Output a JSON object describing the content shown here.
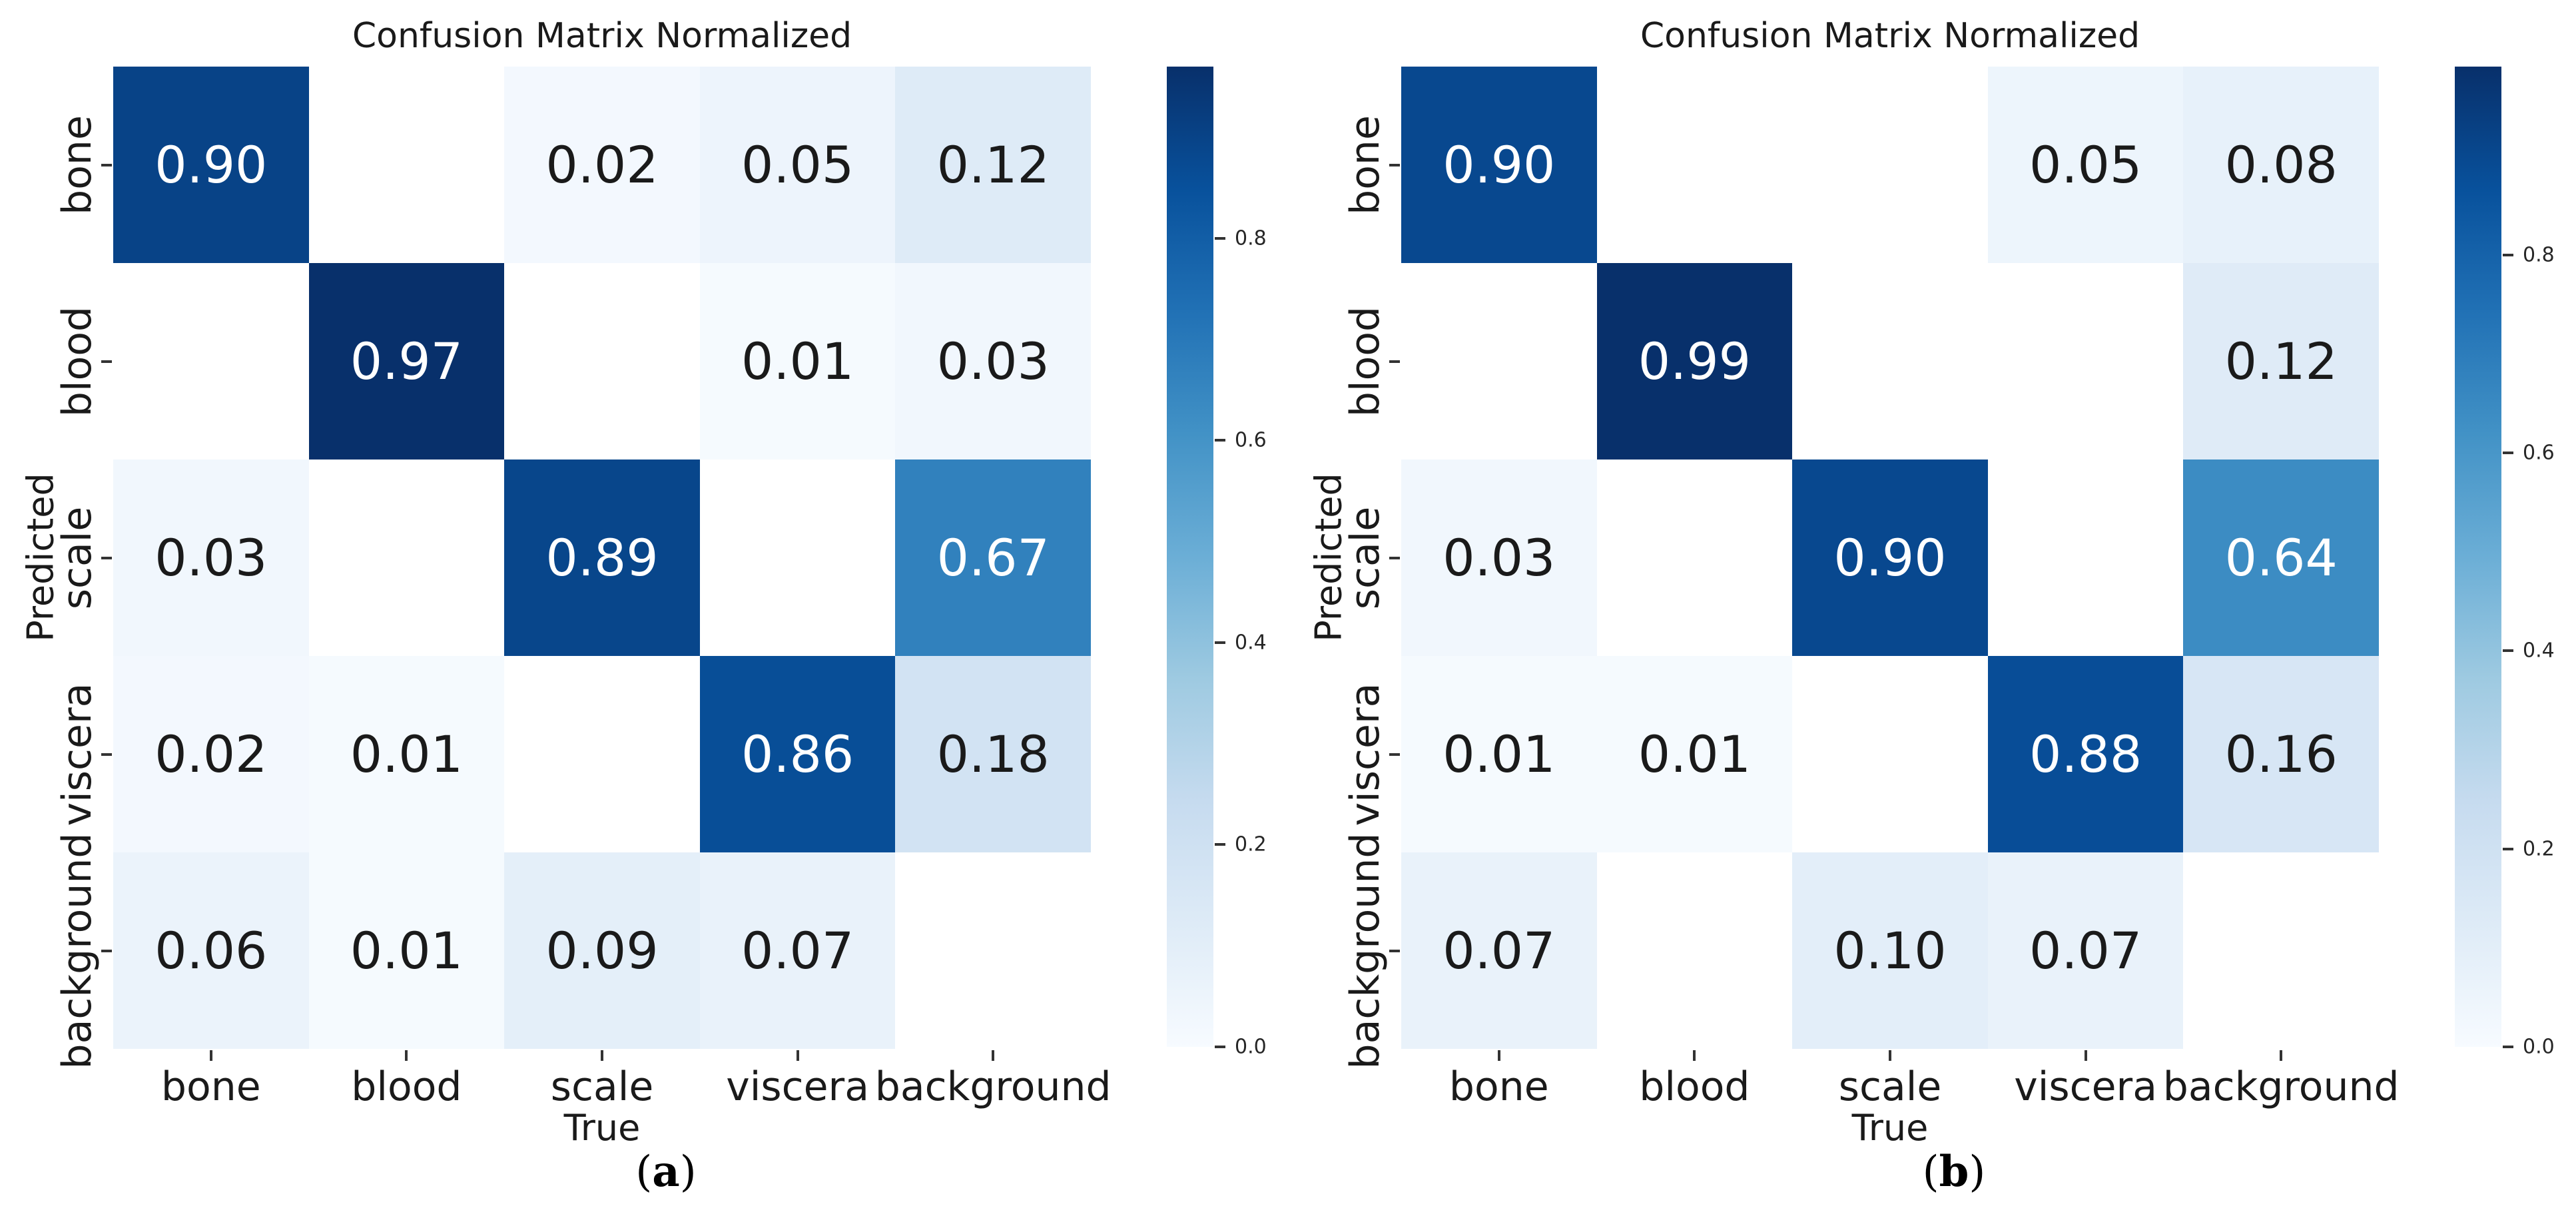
{
  "figure": {
    "background": "#ffffff"
  },
  "chart_data": [
    {
      "type": "heatmap",
      "panel": "a",
      "title": "Confusion Matrix Normalized",
      "xlabel": "True",
      "ylabel": "Predicted",
      "caption_open": "(",
      "caption_letter": "a",
      "caption_close": ")",
      "x_categories": [
        "bone",
        "blood",
        "scale",
        "viscera",
        "background"
      ],
      "y_categories": [
        "bone",
        "blood",
        "scale",
        "viscera",
        "background"
      ],
      "values": [
        [
          0.9,
          null,
          0.02,
          0.05,
          0.12
        ],
        [
          null,
          0.97,
          null,
          0.01,
          0.03
        ],
        [
          0.03,
          null,
          0.89,
          null,
          0.67
        ],
        [
          0.02,
          0.01,
          null,
          0.86,
          0.18
        ],
        [
          0.06,
          0.01,
          0.09,
          0.07,
          null
        ]
      ],
      "value_decimals": 2,
      "vmin": 0.0,
      "vmax": 0.97,
      "colormap": "Blues",
      "colorbar_ticks": [
        0.8,
        0.6,
        0.4,
        0.2,
        0.0
      ],
      "colorbar_tick_decimals": 1,
      "grid_on": false,
      "colorbar_position": "right"
    },
    {
      "type": "heatmap",
      "panel": "b",
      "title": "Confusion Matrix Normalized",
      "xlabel": "True",
      "ylabel": "Predicted",
      "caption_open": "(",
      "caption_letter": "b",
      "caption_close": ")",
      "x_categories": [
        "bone",
        "blood",
        "scale",
        "viscera",
        "background"
      ],
      "y_categories": [
        "bone",
        "blood",
        "scale",
        "viscera",
        "background"
      ],
      "values": [
        [
          0.9,
          null,
          null,
          0.05,
          0.08
        ],
        [
          null,
          0.99,
          null,
          null,
          0.12
        ],
        [
          0.03,
          null,
          0.9,
          null,
          0.64
        ],
        [
          0.01,
          0.01,
          null,
          0.88,
          0.16
        ],
        [
          0.07,
          null,
          0.1,
          0.07,
          null
        ]
      ],
      "value_decimals": 2,
      "vmin": 0.0,
      "vmax": 0.99,
      "colormap": "Blues",
      "colorbar_ticks": [
        0.8,
        0.6,
        0.4,
        0.2,
        0.0
      ],
      "colorbar_tick_decimals": 1,
      "grid_on": false,
      "colorbar_position": "right"
    }
  ],
  "colors": {
    "colormap_anchors": [
      "#f7fbff",
      "#deebf7",
      "#c6dbef",
      "#9ecae1",
      "#6baed6",
      "#4292c6",
      "#2171b5",
      "#08519c",
      "#08306b"
    ],
    "blank_cell": "#ffffff",
    "annotation_light": "#ffffff",
    "annotation_dark": "#1a1a1a",
    "axis_text": "#1a1a1a",
    "tick_mark": "#333333"
  }
}
